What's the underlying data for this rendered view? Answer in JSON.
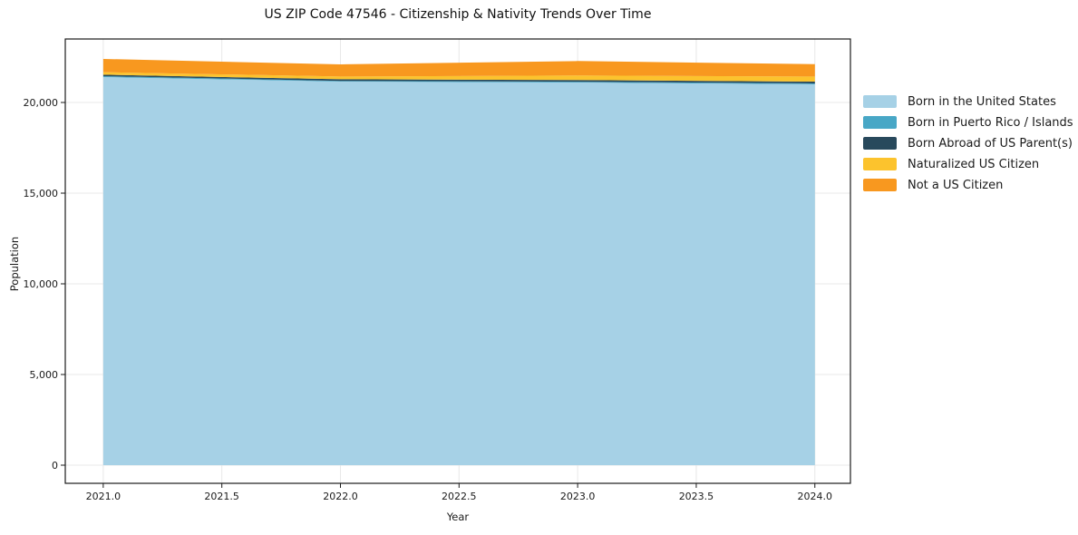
{
  "title": "US ZIP Code 47546 - Citizenship & Nativity Trends Over Time",
  "chart_data": {
    "type": "area",
    "stacked": true,
    "title": "US ZIP Code 47546 - Citizenship & Nativity Trends Over Time",
    "xlabel": "Year",
    "ylabel": "Population",
    "x": [
      2021,
      2022,
      2023,
      2024
    ],
    "series": [
      {
        "name": "Born in the United States",
        "color": "#a6d1e6",
        "values": [
          21400,
          21150,
          21100,
          21000
        ]
      },
      {
        "name": "Born in Puerto Rico / Islands",
        "color": "#48a7c6",
        "values": [
          50,
          40,
          45,
          50
        ]
      },
      {
        "name": "Born Abroad of US Parent(s)",
        "color": "#28495c",
        "values": [
          80,
          90,
          90,
          100
        ]
      },
      {
        "name": "Naturalized US Citizen",
        "color": "#fcc32d",
        "values": [
          140,
          150,
          250,
          280
        ]
      },
      {
        "name": "Not a US Citizen",
        "color": "#f8981f",
        "values": [
          730,
          670,
          800,
          680
        ]
      }
    ],
    "xlim": [
      2020.84,
      2024.15
    ],
    "ylim": [
      -1000,
      23500
    ],
    "x_ticks": [
      2021.0,
      2021.5,
      2022.0,
      2022.5,
      2023.0,
      2023.5,
      2024.0
    ],
    "x_tick_labels": [
      "2021.0",
      "2021.5",
      "2022.0",
      "2022.5",
      "2023.0",
      "2023.5",
      "2024.0"
    ],
    "y_ticks": [
      0,
      5000,
      10000,
      15000,
      20000
    ],
    "y_tick_labels": [
      "0",
      "5,000",
      "10,000",
      "15,000",
      "20,000"
    ],
    "grid": true,
    "legend_position": "right",
    "colors": {
      "grid": "#e8e8e8",
      "spine": "#1a1a1a",
      "tick": "#1a1a1a"
    }
  }
}
